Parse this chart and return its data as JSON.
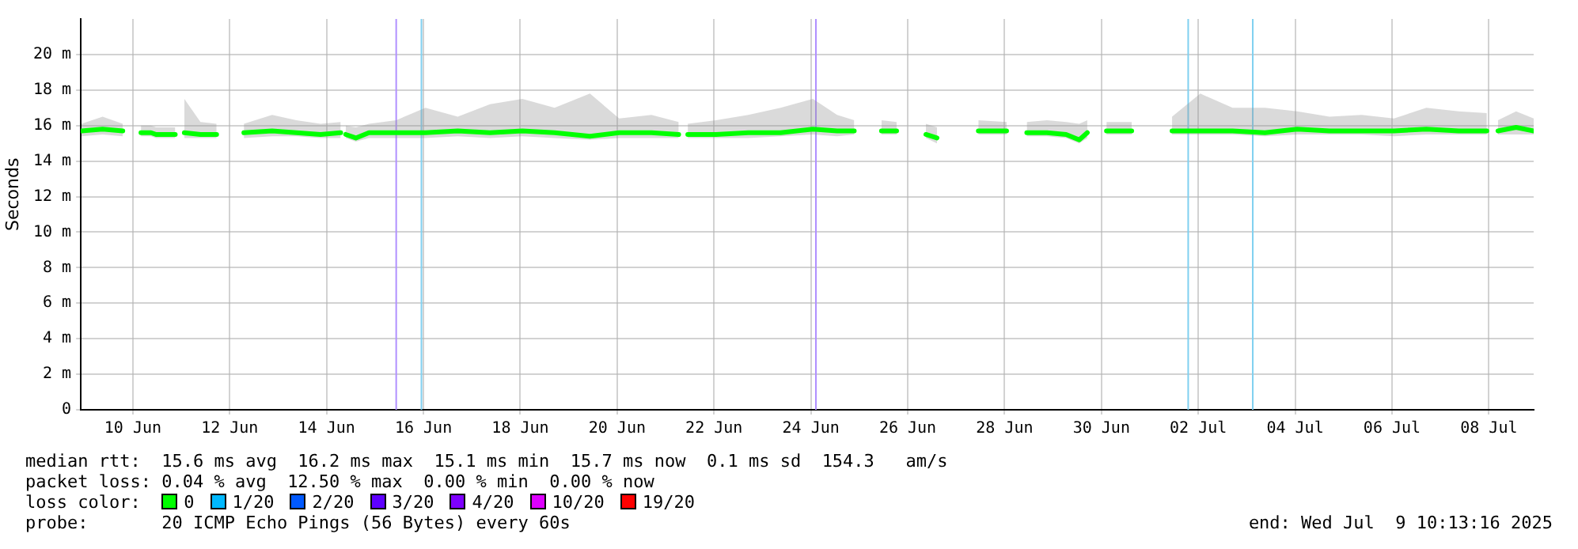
{
  "chart_data": {
    "type": "line",
    "ylabel": "Seconds",
    "legend_title": "loss color:",
    "grid": true,
    "legend": "bottom",
    "marker": "none",
    "line_style": "solid",
    "xlim": [
      "2025-06-09T10:13",
      "2025-07-09T10:13"
    ],
    "xticks": [
      {
        "value": "2025-06-10T12:00",
        "label": "10 Jun"
      },
      {
        "value": "2025-06-12T12:00",
        "label": "12 Jun"
      },
      {
        "value": "2025-06-14T12:00",
        "label": "14 Jun"
      },
      {
        "value": "2025-06-16T12:00",
        "label": "16 Jun"
      },
      {
        "value": "2025-06-18T12:00",
        "label": "18 Jun"
      },
      {
        "value": "2025-06-20T12:00",
        "label": "20 Jun"
      },
      {
        "value": "2025-06-22T12:00",
        "label": "22 Jun"
      },
      {
        "value": "2025-06-24T12:00",
        "label": "24 Jun"
      },
      {
        "value": "2025-06-26T12:00",
        "label": "26 Jun"
      },
      {
        "value": "2025-06-28T12:00",
        "label": "28 Jun"
      },
      {
        "value": "2025-06-30T12:00",
        "label": "30 Jun"
      },
      {
        "value": "2025-07-02T12:00",
        "label": "02 Jul"
      },
      {
        "value": "2025-07-04T12:00",
        "label": "04 Jul"
      },
      {
        "value": "2025-07-06T12:00",
        "label": "06 Jul"
      },
      {
        "value": "2025-07-08T12:00",
        "label": "08 Jul"
      }
    ],
    "ylim": [
      0,
      22
    ],
    "yticks": [
      0,
      {
        "value": 2,
        "label": "2 m"
      },
      {
        "value": 4,
        "label": "4 m"
      },
      {
        "value": 6,
        "label": "6 m"
      },
      {
        "value": 8,
        "label": "8 m"
      },
      {
        "value": 10,
        "label": "10 m"
      },
      {
        "value": 12,
        "label": "12 m"
      },
      {
        "value": 14,
        "label": "14 m"
      },
      {
        "value": 16,
        "label": "16 m"
      },
      {
        "value": 18,
        "label": "18 m"
      },
      {
        "value": 20,
        "label": "20 m"
      }
    ],
    "x": [
      "2025-06-09T10:30",
      "2025-06-09T21:00",
      "2025-06-10T07:00",
      "2025-06-10T13:00",
      "2025-06-10T16:00",
      "2025-06-10T21:00",
      "2025-06-10T23:30",
      "2025-06-11T03:00",
      "2025-06-11T09:00",
      "2025-06-11T11:00",
      "2025-06-11T13:30",
      "2025-06-11T21:30",
      "2025-06-12T05:30",
      "2025-06-12T12:00",
      "2025-06-12T19:00",
      "2025-06-13T09:00",
      "2025-06-13T21:00",
      "2025-06-14T09:00",
      "2025-06-14T19:00",
      "2025-06-14T20:00",
      "2025-06-14T21:30",
      "2025-06-15T02:30",
      "2025-06-15T09:00",
      "2025-06-15T22:30",
      "2025-06-16T13:00",
      "2025-06-17T05:00",
      "2025-06-17T21:00",
      "2025-06-18T13:00",
      "2025-06-19T05:00",
      "2025-06-19T22:30",
      "2025-06-20T13:00",
      "2025-06-21T05:00",
      "2025-06-21T18:30",
      "2025-06-21T20:00",
      "2025-06-21T23:00",
      "2025-06-22T13:00",
      "2025-06-23T05:00",
      "2025-06-23T21:00",
      "2025-06-24T13:00",
      "2025-06-25T01:00",
      "2025-06-25T09:30",
      "2025-06-25T12:00",
      "2025-06-25T23:00",
      "2025-06-26T06:30",
      "2025-06-26T12:00",
      "2025-06-26T21:00",
      "2025-06-27T02:30",
      "2025-06-27T08:00",
      "2025-06-27T23:00",
      "2025-06-28T13:00",
      "2025-06-28T18:00",
      "2025-06-28T23:00",
      "2025-06-29T09:00",
      "2025-06-29T18:30",
      "2025-06-30T01:00",
      "2025-06-30T05:00",
      "2025-06-30T12:00",
      "2025-06-30T14:30",
      "2025-07-01T03:00",
      "2025-07-01T08:00",
      "2025-07-01T23:00",
      "2025-07-02T13:00",
      "2025-07-03T05:00",
      "2025-07-03T21:00",
      "2025-07-04T13:00",
      "2025-07-05T05:00",
      "2025-07-05T21:00",
      "2025-07-06T13:00",
      "2025-07-07T05:00",
      "2025-07-07T21:00",
      "2025-07-08T11:00",
      "2025-07-08T14:00",
      "2025-07-08T16:30",
      "2025-07-09T01:30",
      "2025-07-09T10:13"
    ],
    "series": [
      {
        "name": "0",
        "color": "#00ff00",
        "values": [
          15.7,
          15.8,
          15.7,
          null,
          15.6,
          15.6,
          15.5,
          15.5,
          15.5,
          null,
          15.6,
          15.5,
          15.5,
          null,
          15.6,
          15.7,
          15.6,
          15.5,
          15.6,
          null,
          15.5,
          15.3,
          15.6,
          15.6,
          15.6,
          15.7,
          15.6,
          15.7,
          15.6,
          15.4,
          15.6,
          15.6,
          15.5,
          null,
          15.5,
          15.5,
          15.6,
          15.6,
          15.8,
          15.7,
          15.7,
          null,
          15.7,
          15.7,
          null,
          15.5,
          15.3,
          null,
          15.7,
          15.7,
          null,
          15.6,
          15.6,
          15.5,
          15.2,
          15.6,
          null,
          15.7,
          15.7,
          null,
          15.7,
          15.7,
          15.7,
          15.6,
          15.8,
          15.7,
          15.7,
          15.7,
          15.8,
          15.7,
          15.7,
          null,
          15.7,
          15.9,
          15.7
        ],
        "lower": [
          15.4,
          15.5,
          15.4,
          null,
          15.4,
          15.4,
          15.3,
          15.3,
          15.3,
          null,
          15.3,
          15.3,
          15.3,
          null,
          15.3,
          15.4,
          15.4,
          15.3,
          15.3,
          null,
          15.3,
          15.1,
          15.3,
          15.3,
          15.3,
          15.4,
          15.3,
          15.4,
          15.3,
          15.2,
          15.3,
          15.3,
          15.3,
          null,
          15.3,
          15.3,
          15.3,
          15.4,
          15.5,
          15.4,
          15.5,
          null,
          15.5,
          15.5,
          null,
          15.3,
          15.0,
          null,
          15.5,
          15.5,
          null,
          15.4,
          15.4,
          15.3,
          15.0,
          15.3,
          null,
          15.5,
          15.5,
          null,
          15.5,
          15.5,
          15.5,
          15.4,
          15.5,
          15.5,
          15.5,
          15.4,
          15.5,
          15.5,
          15.5,
          null,
          15.5,
          15.5,
          15.5
        ],
        "upper": [
          16.1,
          16.5,
          16.1,
          null,
          16.0,
          16.0,
          15.9,
          15.9,
          15.9,
          null,
          17.5,
          16.2,
          16.1,
          null,
          16.1,
          16.6,
          16.3,
          16.1,
          16.2,
          null,
          16.0,
          15.9,
          16.1,
          16.3,
          17.0,
          16.5,
          17.2,
          17.5,
          17.0,
          17.8,
          16.4,
          16.6,
          16.2,
          null,
          16.1,
          16.3,
          16.6,
          17.0,
          17.5,
          16.6,
          16.3,
          null,
          16.3,
          16.2,
          null,
          16.1,
          15.9,
          null,
          16.3,
          16.2,
          null,
          16.2,
          16.3,
          16.2,
          16.1,
          16.3,
          null,
          16.2,
          16.2,
          null,
          16.5,
          17.8,
          17.0,
          17.0,
          16.8,
          16.5,
          16.6,
          16.4,
          17.0,
          16.8,
          16.7,
          null,
          16.3,
          16.8,
          16.4
        ]
      },
      {
        "name": "1/20",
        "color": "#00b8ff",
        "values": [
          null,
          null,
          null,
          null,
          null,
          null,
          null,
          null,
          null,
          null,
          null,
          null,
          null,
          null,
          null,
          null,
          null,
          null,
          null,
          null,
          null,
          null,
          null,
          null,
          null,
          null,
          null,
          null,
          null,
          null,
          null,
          null,
          null,
          null,
          null,
          null,
          null,
          null,
          null,
          null,
          null,
          null,
          null,
          null,
          null,
          null,
          null,
          null,
          null,
          null,
          null,
          null,
          null,
          null,
          null,
          null,
          null,
          null,
          null,
          null,
          null,
          null,
          null,
          null,
          null,
          null,
          null,
          null,
          null,
          null,
          null,
          null,
          null,
          null,
          null
        ]
      },
      {
        "name": "2/20",
        "color": "#0059ff",
        "values": [
          null,
          null,
          null,
          null,
          null,
          null,
          null,
          null,
          null,
          null,
          null,
          null,
          null,
          null,
          null,
          null,
          null,
          null,
          null,
          null,
          null,
          null,
          null,
          null,
          null,
          null,
          null,
          null,
          null,
          null,
          null,
          null,
          null,
          null,
          null,
          null,
          null,
          null,
          null,
          null,
          null,
          null,
          null,
          null,
          null,
          null,
          null,
          null,
          null,
          null,
          null,
          null,
          null,
          null,
          null,
          null,
          null,
          null,
          null,
          null,
          null,
          null,
          null,
          null,
          null,
          null,
          null,
          null,
          null,
          null,
          null,
          null,
          null,
          null,
          null
        ]
      },
      {
        "name": "3/20",
        "color": "#5e00ff",
        "values": [
          null,
          null,
          null,
          null,
          null,
          null,
          null,
          null,
          null,
          null,
          null,
          null,
          null,
          null,
          null,
          null,
          null,
          null,
          null,
          null,
          null,
          null,
          null,
          null,
          null,
          null,
          null,
          null,
          null,
          null,
          null,
          null,
          null,
          null,
          null,
          null,
          null,
          null,
          null,
          null,
          null,
          null,
          null,
          null,
          null,
          null,
          null,
          null,
          null,
          null,
          null,
          null,
          null,
          null,
          null,
          null,
          null,
          null,
          null,
          null,
          null,
          null,
          null,
          null,
          null,
          null,
          null,
          null,
          null,
          null,
          null,
          null,
          null,
          null,
          null
        ]
      },
      {
        "name": "4/20",
        "color": "#7e00ff",
        "values": [
          null,
          null,
          null,
          null,
          null,
          null,
          null,
          null,
          null,
          null,
          null,
          null,
          null,
          null,
          null,
          null,
          null,
          null,
          null,
          null,
          null,
          null,
          null,
          null,
          null,
          null,
          null,
          null,
          null,
          null,
          null,
          null,
          null,
          null,
          null,
          null,
          null,
          null,
          null,
          null,
          null,
          null,
          null,
          null,
          null,
          null,
          null,
          null,
          null,
          null,
          null,
          null,
          null,
          null,
          null,
          null,
          null,
          null,
          null,
          null,
          null,
          null,
          null,
          null,
          null,
          null,
          null,
          null,
          null,
          null,
          null,
          null,
          null,
          null,
          null
        ]
      },
      {
        "name": "10/20",
        "color": "#dd00ff",
        "values": [
          null,
          null,
          null,
          null,
          null,
          null,
          null,
          null,
          null,
          null,
          null,
          null,
          null,
          null,
          null,
          null,
          null,
          null,
          null,
          null,
          null,
          null,
          null,
          null,
          null,
          null,
          null,
          null,
          null,
          null,
          null,
          null,
          null,
          null,
          null,
          null,
          null,
          null,
          null,
          null,
          null,
          null,
          null,
          null,
          null,
          null,
          null,
          null,
          null,
          null,
          null,
          null,
          null,
          null,
          null,
          null,
          null,
          null,
          null,
          null,
          null,
          null,
          null,
          null,
          null,
          null,
          null,
          null,
          null,
          null,
          null,
          null,
          null,
          null,
          null
        ]
      },
      {
        "name": "19/20",
        "color": "#ff0000",
        "values": [
          null,
          null,
          null,
          null,
          null,
          null,
          null,
          null,
          null,
          null,
          null,
          null,
          null,
          null,
          null,
          null,
          null,
          null,
          null,
          null,
          null,
          null,
          null,
          null,
          null,
          null,
          null,
          null,
          null,
          null,
          null,
          null,
          null,
          null,
          null,
          null,
          null,
          null,
          null,
          null,
          null,
          null,
          null,
          null,
          null,
          null,
          null,
          null,
          null,
          null,
          null,
          null,
          null,
          null,
          null,
          null,
          null,
          null,
          null,
          null,
          null,
          null,
          null,
          null,
          null,
          null,
          null,
          null,
          null,
          null,
          null,
          null,
          null,
          null,
          null
        ]
      }
    ],
    "ref_lines": [
      {
        "axis": "x",
        "value": "2025-06-15T22:30",
        "label": null,
        "color": "#b090ff"
      },
      {
        "axis": "x",
        "value": "2025-06-16T11:00",
        "label": null,
        "color": "#80d0f0"
      },
      {
        "axis": "x",
        "value": "2025-06-24T14:30",
        "label": null,
        "color": "#b090ff"
      },
      {
        "axis": "x",
        "value": "2025-07-02T07:00",
        "label": null,
        "color": "#80d0f0"
      },
      {
        "axis": "x",
        "value": "2025-07-03T15:00",
        "label": null,
        "color": "#80d0f0"
      }
    ],
    "annotations": [
      "median rtt:  15.6 ms avg  16.2 ms max  15.1 ms min  15.7 ms now  0.1 ms sd  154.3   am/s",
      "packet loss: 0.04 % avg  12.50 % max  0.00 % min  0.00 % now",
      "probe:       20 ICMP Echo Pings (56 Bytes) every 60s",
      "end: Wed Jul  9 10:13:16 2025"
    ]
  }
}
